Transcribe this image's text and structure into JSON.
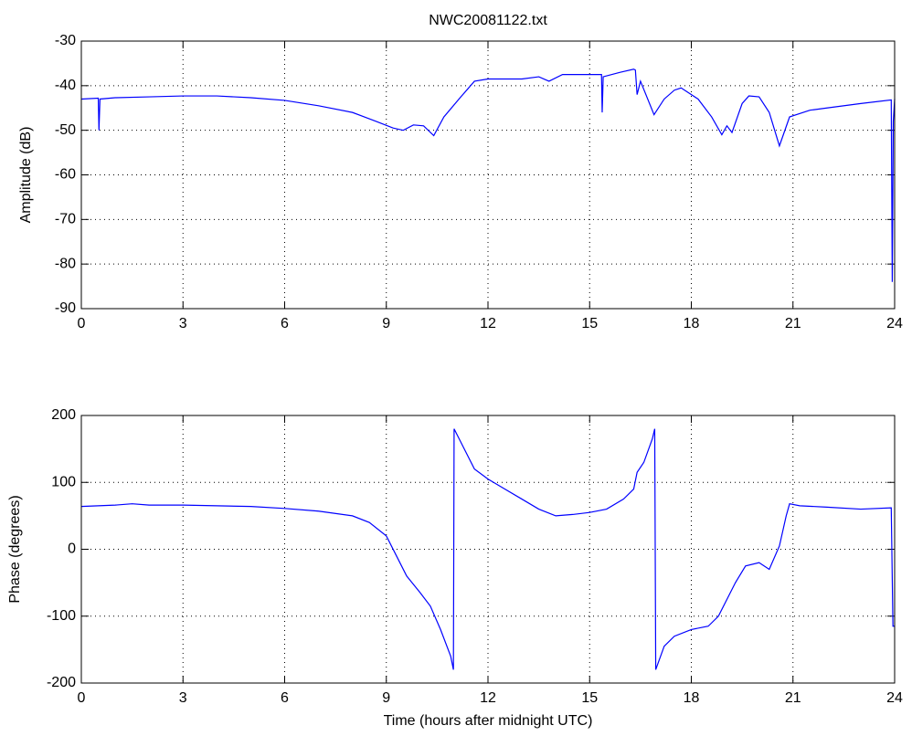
{
  "chart_data": [
    {
      "type": "line",
      "title": "NWC20081122.txt",
      "ylabel": "Amplitude (dB)",
      "color": "#0000ff",
      "grid": true,
      "xlim": [
        0,
        24
      ],
      "xticks": [
        0,
        3,
        6,
        9,
        12,
        15,
        18,
        21,
        24
      ],
      "ylim": [
        -90,
        -30
      ],
      "yticks": [
        -90,
        -80,
        -70,
        -60,
        -50,
        -40,
        -30
      ],
      "x": [
        0,
        0.5,
        0.52,
        0.55,
        1,
        2,
        3,
        4,
        5,
        6,
        7,
        8,
        8.7,
        9.2,
        9.5,
        9.8,
        10.1,
        10.4,
        10.7,
        11.2,
        11.6,
        12,
        13,
        13.5,
        13.8,
        14.2,
        15,
        15.35,
        15.37,
        15.4,
        15.9,
        16.3,
        16.35,
        16.4,
        16.5,
        16.9,
        17.2,
        17.5,
        17.7,
        18.2,
        18.6,
        18.9,
        19.05,
        19.2,
        19.5,
        19.7,
        20.0,
        20.3,
        20.6,
        20.9,
        21.5,
        22,
        23,
        23.9,
        23.93,
        23.96,
        24
      ],
      "values": [
        -43,
        -42.8,
        -50,
        -43,
        -42.7,
        -42.5,
        -42.3,
        -42.3,
        -42.7,
        -43.3,
        -44.5,
        -46,
        -48,
        -49.5,
        -50,
        -48.8,
        -49,
        -51.2,
        -47,
        -42.5,
        -39,
        -38.5,
        -38.5,
        -38,
        -39,
        -37.5,
        -37.5,
        -37.5,
        -46,
        -38,
        -37,
        -36.3,
        -36.5,
        -42,
        -39,
        -46.5,
        -43,
        -41,
        -40.5,
        -43,
        -47,
        -51,
        -49,
        -50.5,
        -44,
        -42.3,
        -42.5,
        -46,
        -53.5,
        -47,
        -45.5,
        -45,
        -44,
        -43.2,
        -84,
        -48,
        -43
      ]
    },
    {
      "type": "line",
      "xlabel": "Time (hours after midnight UTC)",
      "ylabel": "Phase (degrees)",
      "color": "#0000ff",
      "grid": true,
      "xlim": [
        0,
        24
      ],
      "xticks": [
        0,
        3,
        6,
        9,
        12,
        15,
        18,
        21,
        24
      ],
      "ylim": [
        -200,
        200
      ],
      "yticks": [
        -200,
        -100,
        0,
        100,
        200
      ],
      "x": [
        0,
        1,
        1.5,
        2,
        3,
        4,
        5,
        6,
        7,
        8,
        8.5,
        9,
        9.3,
        9.6,
        10,
        10.3,
        10.6,
        10.9,
        10.98,
        11.0,
        11.3,
        11.6,
        12,
        12.5,
        13,
        13.5,
        14,
        14.5,
        15,
        15.5,
        16,
        16.3,
        16.4,
        16.6,
        16.85,
        16.92,
        16.95,
        17.2,
        17.5,
        18,
        18.5,
        18.8,
        19,
        19.3,
        19.6,
        20,
        20.3,
        20.6,
        20.8,
        20.9,
        21.2,
        22,
        23,
        23.9,
        23.95,
        24
      ],
      "values": [
        64,
        66,
        68,
        66,
        66,
        65,
        64,
        61,
        57,
        50,
        40,
        20,
        -10,
        -40,
        -65,
        -85,
        -120,
        -160,
        -180,
        180,
        150,
        120,
        105,
        90,
        75,
        60,
        50,
        52,
        55,
        60,
        75,
        90,
        115,
        130,
        165,
        180,
        -180,
        -145,
        -130,
        -120,
        -115,
        -100,
        -80,
        -50,
        -25,
        -20,
        -30,
        5,
        50,
        68,
        65,
        63,
        60,
        62,
        -115,
        -115
      ]
    }
  ]
}
